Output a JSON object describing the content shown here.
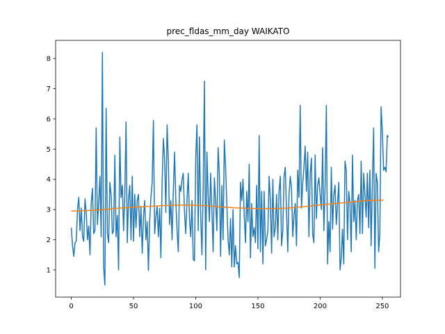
{
  "chart_data": {
    "type": "line",
    "title": "prec_fldas_mm_day WAIKATO",
    "xlabel": "",
    "ylabel": "",
    "xlim": [
      -12.6,
      264.6
    ],
    "ylim": [
      0.1,
      8.6
    ],
    "x_ticks": [
      0,
      50,
      100,
      150,
      200,
      250
    ],
    "y_ticks": [
      1,
      2,
      3,
      4,
      5,
      6,
      7,
      8
    ],
    "grid": false,
    "legend": "none",
    "series": [
      {
        "color": "#1f77b4",
        "x_start": 0,
        "x_step": 1,
        "values": [
          2.4,
          1.8,
          1.45,
          1.9,
          1.95,
          3.0,
          3.4,
          2.3,
          3.05,
          2.1,
          1.95,
          3.35,
          2.9,
          2.0,
          2.45,
          1.5,
          3.2,
          3.7,
          2.2,
          2.3,
          5.7,
          2.5,
          3.2,
          4.1,
          2.1,
          8.2,
          1.1,
          0.5,
          6.35,
          2.2,
          1.9,
          3.9,
          3.5,
          2.2,
          2.3,
          4.8,
          2.1,
          2.8,
          1.0,
          5.4,
          3.4,
          3.8,
          2.3,
          3.5,
          5.9,
          1.9,
          3.35,
          3.8,
          2.0,
          4.1,
          1.95,
          3.5,
          2.4,
          3.3,
          3.5,
          2.1,
          3.1,
          1.55,
          2.75,
          3.3,
          2.0,
          2.6,
          0.98,
          2.6,
          3.4,
          3.9,
          5.95,
          2.2,
          2.75,
          3.1,
          2.1,
          3.05,
          1.4,
          3.9,
          5.35,
          4.7,
          2.9,
          5.8,
          4.6,
          2.5,
          3.3,
          2.0,
          3.6,
          4.9,
          3.3,
          2.3,
          1.6,
          3.8,
          3.6,
          4.0,
          4.2,
          2.9,
          2.2,
          3.3,
          4.2,
          2.7,
          2.1,
          3.3,
          1.35,
          1.3,
          4.7,
          5.8,
          2.3,
          5.4,
          2.8,
          1.5,
          3.7,
          7.25,
          1.0,
          4.9,
          3.5,
          2.6,
          4.2,
          3.0,
          1.6,
          4.05,
          3.3,
          2.3,
          5.05,
          4.2,
          1.45,
          3.8,
          2.0,
          5.3,
          4.4,
          3.2,
          2.0,
          1.5,
          2.7,
          1.1,
          3.0,
          1.1,
          1.8,
          1.2,
          1.25,
          0.75,
          3.9,
          3.3,
          4.0,
          2.8,
          1.9,
          3.6,
          2.6,
          4.5,
          1.4,
          3.2,
          2.1,
          2.4,
          1.9,
          3.8,
          1.7,
          5.45,
          1.6,
          3.6,
          1.2,
          3.6,
          1.8,
          2.0,
          2.3,
          4.1,
          3.3,
          1.55,
          4.0,
          2.1,
          2.4,
          3.5,
          2.0,
          3.6,
          4.1,
          1.8,
          2.3,
          4.1,
          4.4,
          2.9,
          1.6,
          3.5,
          4.1,
          3.7,
          2.1,
          2.8,
          3.2,
          1.8,
          4.3,
          3.4,
          6.45,
          3.05,
          3.85,
          4.4,
          5.1,
          3.6,
          4.9,
          2.1,
          4.2,
          4.7,
          2.2,
          1.9,
          4.8,
          2.7,
          3.8,
          4.05,
          3.5,
          3.0,
          5.05,
          2.3,
          3.8,
          6.45,
          1.2,
          2.6,
          1.6,
          4.4,
          2.35,
          3.5,
          3.8,
          2.5,
          3.2,
          3.9,
          1.0,
          1.4,
          2.35,
          1.2,
          4.6,
          4.3,
          2.0,
          3.6,
          3.2,
          1.6,
          4.8,
          2.6,
          3.3,
          2.0,
          3.3,
          3.5,
          2.2,
          4.6,
          2.2,
          4.2,
          3.5,
          2.75,
          4.2,
          2.4,
          4.3,
          1.8,
          3.9,
          5.7,
          1.05,
          4.2,
          3.9,
          1.6,
          2.2,
          6.4,
          5.6,
          4.3,
          4.4,
          4.25,
          5.45,
          5.4
        ]
      },
      {
        "color": "#ff7f0e",
        "x": [
          0,
          10,
          20,
          30,
          40,
          50,
          60,
          70,
          80,
          90,
          100,
          110,
          120,
          130,
          140,
          150,
          160,
          170,
          180,
          190,
          200,
          210,
          220,
          230,
          240,
          251
        ],
        "values": [
          2.95,
          2.96,
          2.98,
          3.01,
          3.05,
          3.08,
          3.1,
          3.12,
          3.14,
          3.15,
          3.14,
          3.12,
          3.09,
          3.06,
          3.04,
          3.03,
          3.03,
          3.04,
          3.07,
          3.11,
          3.15,
          3.19,
          3.23,
          3.27,
          3.3,
          3.31
        ]
      }
    ]
  }
}
